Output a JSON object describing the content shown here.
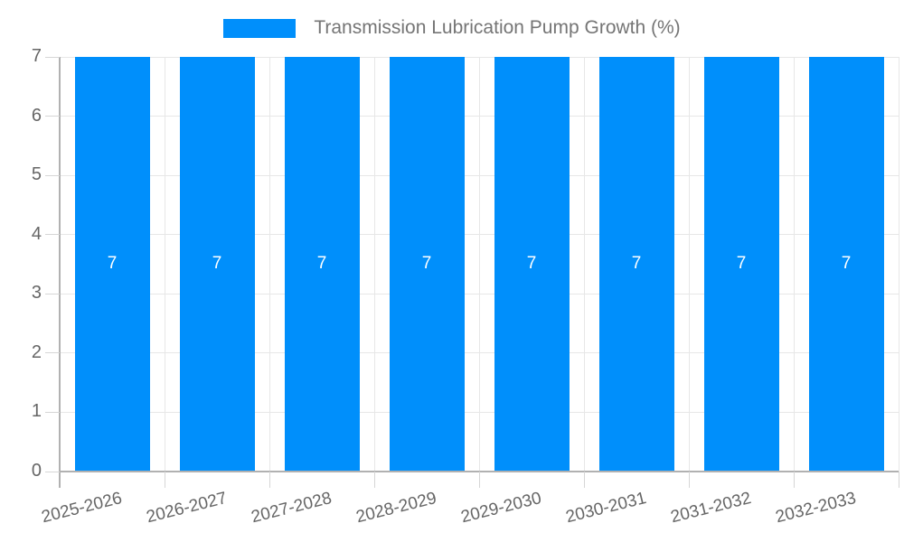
{
  "legend": {
    "label": "Transmission Lubrication Pump Growth (%)"
  },
  "chart_data": {
    "type": "bar",
    "title": "Transmission Lubrication Pump Growth (%)",
    "categories": [
      "2025-2026",
      "2026-2027",
      "2027-2028",
      "2028-2029",
      "2029-2030",
      "2030-2031",
      "2031-2032",
      "2032-2033"
    ],
    "series": [
      {
        "name": "Transmission Lubrication Pump Growth (%)",
        "values": [
          7,
          7,
          7,
          7,
          7,
          7,
          7,
          7
        ],
        "color": "#008FFB"
      }
    ],
    "data_labels": [
      "7",
      "7",
      "7",
      "7",
      "7",
      "7",
      "7",
      "7"
    ],
    "xlabel": "",
    "ylabel": "",
    "ylim": [
      0,
      7
    ],
    "yticks": [
      0,
      1,
      2,
      3,
      4,
      5,
      6,
      7
    ],
    "grid": true,
    "legend_position": "top",
    "colors": {
      "bar": "#008FFB",
      "data_label": "#FFFFFF",
      "axis_text": "#666666",
      "title_text": "#757575",
      "gridline": "#E7E7E7",
      "axis_line": "#B1B1B1",
      "tick": "#D6D6D6",
      "background": "#FFFFFF"
    }
  }
}
